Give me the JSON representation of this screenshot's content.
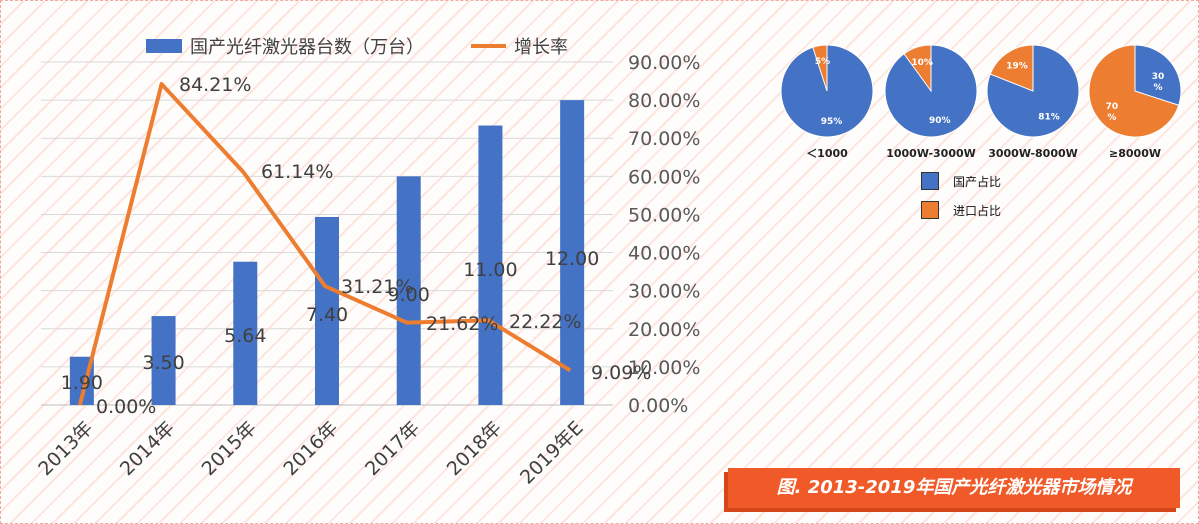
{
  "chart_data": [
    {
      "type": "bar",
      "categories": [
        "2013年",
        "2014年",
        "2015年",
        "2016年",
        "2017年",
        "2018年",
        "2019年E"
      ],
      "series": [
        {
          "name": "国产光纤激光器台数（万台）",
          "type": "bar",
          "values": [
            1.9,
            3.5,
            5.64,
            7.4,
            9.0,
            11.0,
            12.0
          ],
          "labels": [
            "1.90",
            "3.50",
            "5.64",
            "7.40",
            "9.00",
            "11.00",
            "12.00"
          ],
          "color": "#4472c4"
        },
        {
          "name": "增长率",
          "type": "line",
          "axis": "right",
          "values": [
            0.0,
            84.21,
            61.14,
            31.21,
            21.62,
            22.22,
            9.09
          ],
          "labels": [
            "0.00%",
            "84.21%",
            "61.14%",
            "31.21%",
            "21.62%",
            "22.22%",
            "9.09%"
          ],
          "color": "#ed7d31"
        }
      ],
      "y_right": {
        "lim": [
          0,
          90
        ],
        "ticks": [
          "0.00%",
          "10.00%",
          "20.00%",
          "30.00%",
          "40.00%",
          "50.00%",
          "60.00%",
          "70.00%",
          "80.00%",
          "90.00%"
        ]
      },
      "y_left": {
        "lim": [
          0,
          13.5
        ]
      },
      "grid": true,
      "legend": "top"
    },
    {
      "type": "pie",
      "pies": [
        {
          "label": "＜1000",
          "slices": [
            95,
            5
          ],
          "slice_labels": [
            "95%",
            "5%"
          ]
        },
        {
          "label": "1000W-3000W",
          "slices": [
            90,
            10
          ],
          "slice_labels": [
            "90%",
            "10%"
          ]
        },
        {
          "label": "3000W-8000W",
          "slices": [
            81,
            19
          ],
          "slice_labels": [
            "81%",
            "19%"
          ]
        },
        {
          "label": "≥8000W",
          "slices": [
            30,
            70
          ],
          "slice_labels": [
            "30\n%",
            "70\n%"
          ]
        }
      ],
      "legend": [
        {
          "name": "国产占比",
          "color": "#4472c4"
        },
        {
          "name": "进口占比",
          "color": "#ed7d31"
        }
      ]
    }
  ],
  "caption": "图. 2013-2019年国产光纤激光器市场情况"
}
